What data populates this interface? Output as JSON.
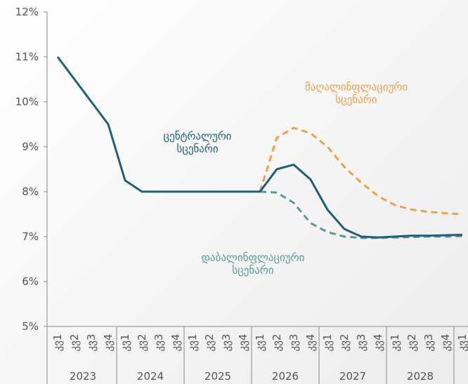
{
  "chart_data": {
    "type": "line",
    "categories": [
      "კვ1",
      "კვ2",
      "კვ3",
      "კვ4",
      "კვ1",
      "კვ2",
      "კვ3",
      "კვ4",
      "კვ1",
      "კვ2",
      "კვ3",
      "კვ4",
      "კვ1",
      "კვ2",
      "კვ3",
      "კვ4",
      "კვ1",
      "კვ2",
      "კვ3",
      "კვ4",
      "კვ1",
      "კვ2",
      "კვ3",
      "კვ4",
      "კვ1"
    ],
    "years": [
      "2023",
      "2024",
      "2025",
      "2026",
      "2027",
      "2028"
    ],
    "ylim": [
      5,
      12
    ],
    "yticks": [
      {
        "value": 5,
        "label": "5%"
      },
      {
        "value": 6,
        "label": "6%"
      },
      {
        "value": 7,
        "label": "7%"
      },
      {
        "value": 8,
        "label": "8%"
      },
      {
        "value": 9,
        "label": "9%"
      },
      {
        "value": 10,
        "label": "10%"
      },
      {
        "value": 11,
        "label": "11%"
      },
      {
        "value": 12,
        "label": "12%"
      }
    ],
    "series": [
      {
        "name": "ცენტრალური სცენარი",
        "color": "#1f5f7a",
        "dashed": false,
        "values": [
          11.0,
          10.5,
          10.0,
          9.5,
          8.25,
          8.0,
          8.0,
          8.0,
          8.0,
          8.0,
          8.0,
          8.0,
          8.0,
          8.5,
          8.6,
          8.27,
          7.6,
          7.17,
          7.0,
          6.98,
          7.0,
          7.02,
          7.02,
          7.03,
          7.04
        ]
      },
      {
        "name": "მაღალინფლაციური სცენარი",
        "color": "#f0a04b",
        "dashed": true,
        "values": [
          null,
          null,
          null,
          null,
          null,
          null,
          null,
          null,
          null,
          null,
          null,
          null,
          8.0,
          9.2,
          9.42,
          9.3,
          9.0,
          8.55,
          8.2,
          7.9,
          7.7,
          7.6,
          7.55,
          7.52,
          7.5
        ]
      },
      {
        "name": "დაბალინფლაციური სცენარი",
        "color": "#5a9a96",
        "dashed": true,
        "values": [
          null,
          null,
          null,
          null,
          null,
          null,
          null,
          null,
          null,
          null,
          null,
          null,
          8.0,
          7.98,
          7.75,
          7.3,
          7.1,
          7.0,
          6.97,
          6.97,
          6.98,
          6.99,
          7.0,
          7.0,
          7.01
        ]
      }
    ]
  }
}
